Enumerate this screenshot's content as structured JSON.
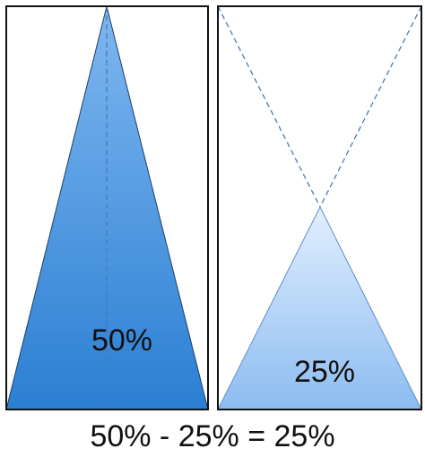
{
  "panels": [
    {
      "label": "50%"
    },
    {
      "label": "25%"
    }
  ],
  "equation": "50% - 25% = 25%",
  "colors": {
    "outline": "#111111",
    "dash": "#4a7bb7",
    "grad_dark": "#2b7fd3",
    "grad_light": "#7fb7f0",
    "grad_pale": "#e2efff",
    "grad_mid": "#8cbcf0"
  }
}
